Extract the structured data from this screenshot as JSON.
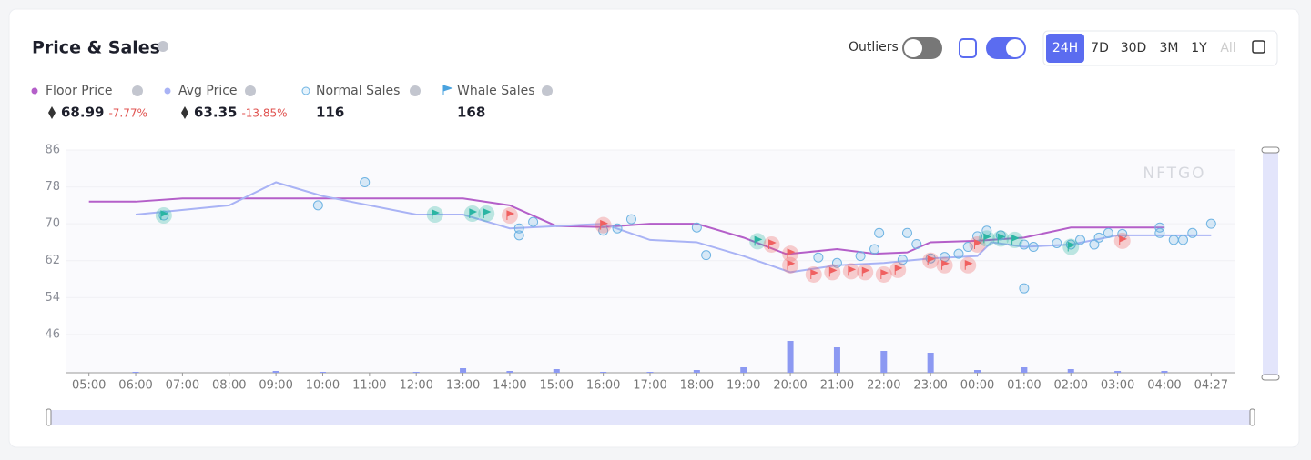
{
  "header": {
    "title": "Price & Sales",
    "outliers_label": "Outliers",
    "ranges": [
      "24H",
      "7D",
      "30D",
      "3M",
      "1Y",
      "All"
    ]
  },
  "stats": [
    {
      "name": "Floor Price",
      "value": 68.99,
      "change": "-7.77%"
    },
    {
      "name": "Avg Price",
      "value": 63.35,
      "change": "-13.85%"
    },
    {
      "name": "Normal Sales",
      "value": 116
    },
    {
      "name": "Whale Sales",
      "value": 168
    }
  ],
  "chart_data": {
    "type": "line",
    "watermark": "NFTGO",
    "xlim": [
      -0.5,
      24.5
    ],
    "ylim": [
      37.7,
      86
    ],
    "yticks": [
      86,
      78,
      70,
      62,
      54,
      46
    ],
    "xticks": [
      {
        "value": 0,
        "label": "05:00"
      },
      {
        "value": 1,
        "label": "06:00"
      },
      {
        "value": 2,
        "label": "07:00"
      },
      {
        "value": 3,
        "label": "08:00"
      },
      {
        "value": 4,
        "label": "09:00"
      },
      {
        "value": 5,
        "label": "10:00"
      },
      {
        "value": 6,
        "label": "11:00"
      },
      {
        "value": 7,
        "label": "12:00"
      },
      {
        "value": 8,
        "label": "13:00"
      },
      {
        "value": 9,
        "label": "14:00"
      },
      {
        "value": 10,
        "label": "15:00"
      },
      {
        "value": 11,
        "label": "16:00"
      },
      {
        "value": 12,
        "label": "17:00"
      },
      {
        "value": 13,
        "label": "18:00"
      },
      {
        "value": 14,
        "label": "19:00"
      },
      {
        "value": 15,
        "label": "20:00"
      },
      {
        "value": 16,
        "label": "21:00"
      },
      {
        "value": 17,
        "label": "22:00"
      },
      {
        "value": 18,
        "label": "23:00"
      },
      {
        "value": 19,
        "label": "00:00"
      },
      {
        "value": 20,
        "label": "01:00"
      },
      {
        "value": 21,
        "label": "02:00"
      },
      {
        "value": 22,
        "label": "03:00"
      },
      {
        "value": 23,
        "label": "04:00"
      },
      {
        "value": 24,
        "label": "04:27"
      }
    ],
    "series": [
      {
        "name": "Floor Price",
        "color": "#b45fc9",
        "x": [
          0,
          1,
          2,
          3,
          4,
          5,
          6,
          7,
          8,
          9,
          10,
          11,
          12,
          13,
          14,
          14.9,
          15,
          16,
          16.8,
          17.5,
          18,
          19,
          20,
          21,
          22,
          23
        ],
        "values": [
          74.8,
          74.8,
          75.5,
          75.5,
          75.5,
          75.5,
          75.5,
          75.5,
          75.5,
          74,
          69.5,
          69.3,
          70,
          70,
          67,
          63.5,
          63.5,
          64.5,
          63.5,
          63.8,
          66,
          66.3,
          67,
          69.2,
          69.2,
          69.2
        ]
      },
      {
        "name": "Avg Price",
        "color": "#a9b3f5",
        "x": [
          1,
          3,
          4,
          5,
          7,
          8,
          9,
          10,
          11,
          12,
          13,
          14,
          15,
          16,
          17,
          18,
          19,
          19.3,
          20,
          21,
          22,
          23,
          24
        ],
        "values": [
          72,
          74,
          79,
          76,
          72,
          72,
          69,
          69.5,
          70,
          66.5,
          66,
          63,
          59.5,
          61,
          61.5,
          62.5,
          63,
          66,
          65,
          65.5,
          67.5,
          67.5,
          67.5
        ]
      }
    ],
    "normal_sales": {
      "color": "#6fb4e3",
      "x": [
        1.6,
        4.9,
        5.9,
        9.2,
        9.2,
        9.5,
        11,
        11.3,
        11.6,
        13,
        13.2,
        15.6,
        16,
        16.5,
        16.8,
        16.9,
        17.4,
        17.5,
        17.7,
        18,
        18.3,
        18.6,
        18.8,
        19,
        19.2,
        19.5,
        20,
        20,
        20.2,
        20.7,
        21,
        21.2,
        21.5,
        21.6,
        21.8,
        22.1,
        22.9,
        22.9,
        23.2,
        23.4,
        23.6,
        24
      ],
      "values": [
        71.8,
        74,
        79,
        69,
        67.5,
        70.4,
        68.5,
        69,
        71,
        69.2,
        63.2,
        62.7,
        61.5,
        63,
        64.5,
        68,
        62.2,
        68,
        65.6,
        62.5,
        62.8,
        63.5,
        65,
        67.3,
        68.5,
        67.5,
        65.5,
        56,
        65,
        65.8,
        65.5,
        66.5,
        65.5,
        67,
        68,
        67.8,
        69.2,
        68,
        66.5,
        66.5,
        68,
        70
      ]
    },
    "whale_sales": {
      "x": [
        1.6,
        7.4,
        8.2,
        8.5,
        9,
        11,
        14.3,
        14.6,
        15,
        15,
        15.5,
        15.9,
        16.3,
        16.6,
        17,
        17.3,
        18,
        18.3,
        18.8,
        19,
        19.2,
        19.5,
        19.8,
        21,
        22.1
      ],
      "values": [
        71.8,
        72,
        72.2,
        72.2,
        71.8,
        69.7,
        66.2,
        65.5,
        63.5,
        61,
        59,
        59.5,
        59.7,
        59.5,
        59,
        60,
        62,
        61,
        61,
        65.5,
        66.8,
        66.8,
        66.5,
        65,
        66.3
      ],
      "point_colors": [
        "#2bb5a3",
        "#2bb5a3",
        "#2bb5a3",
        "#2bb5a3",
        "#f06060",
        "#f06060",
        "#2bb5a3",
        "#f06060",
        "#f06060",
        "#f06060",
        "#f06060",
        "#f06060",
        "#f06060",
        "#f06060",
        "#f06060",
        "#f06060",
        "#f06060",
        "#f06060",
        "#f06060",
        "#f06060",
        "#2bb5a3",
        "#2bb5a3",
        "#2bb5a3",
        "#2bb5a3",
        "#f06060"
      ]
    },
    "volume": {
      "color": "#8c99f2",
      "y2lim": [
        0,
        40
      ],
      "x": [
        1,
        4,
        5,
        7,
        8,
        9,
        10,
        11,
        12,
        13,
        14,
        15,
        16,
        17,
        18,
        19,
        20,
        21,
        22,
        23
      ],
      "values": [
        1,
        2,
        1,
        1,
        5,
        2,
        4,
        1,
        1,
        3,
        6,
        35,
        28,
        24,
        22,
        3,
        6,
        4,
        2,
        2
      ]
    }
  }
}
